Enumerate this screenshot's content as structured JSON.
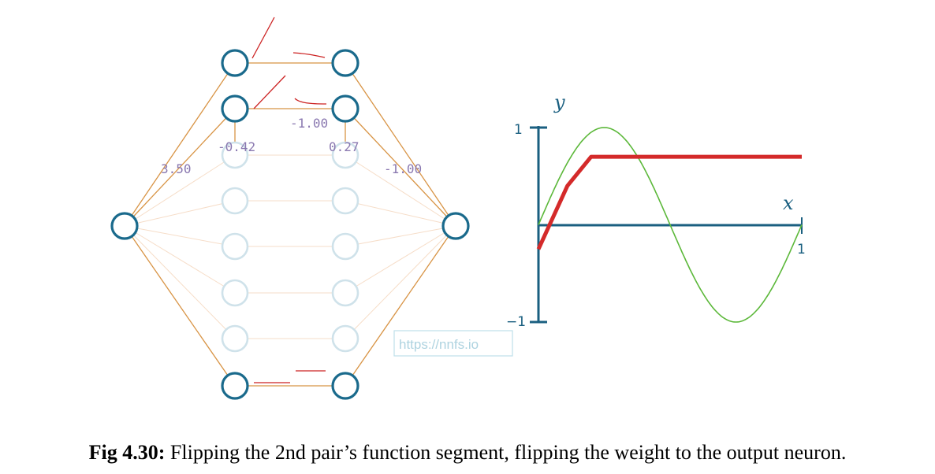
{
  "network": {
    "weight_labels": [
      "-1.00",
      "-0.42",
      "0.27",
      "3.50",
      "-1.00"
    ]
  },
  "plot": {
    "y_axis_label": "y",
    "x_axis_label": "x",
    "y_tick_top": "1",
    "y_tick_bottom": "−1",
    "x_tick_right": "1",
    "watermark": "https://nnfs.io"
  },
  "chart_data": {
    "type": "line",
    "xlim": [
      0,
      1
    ],
    "ylim": [
      -1,
      1
    ],
    "grid": false,
    "series": [
      {
        "color": "#5cb83a",
        "style": "thin",
        "function": "sin(2*pi*x)",
        "x": [
          0,
          0.25,
          0.5,
          0.75,
          1
        ],
        "y": [
          0,
          1,
          0,
          -1,
          0
        ]
      },
      {
        "color": "#d42a2a",
        "style": "thick",
        "x": [
          0,
          0.11,
          0.2,
          1
        ],
        "y": [
          -0.25,
          0.4,
          0.7,
          0.7
        ]
      }
    ]
  },
  "caption": {
    "label": "Fig 4.30:",
    "text": " Flipping the 2nd pair’s function segment, flipping the weight to the output neuron."
  }
}
